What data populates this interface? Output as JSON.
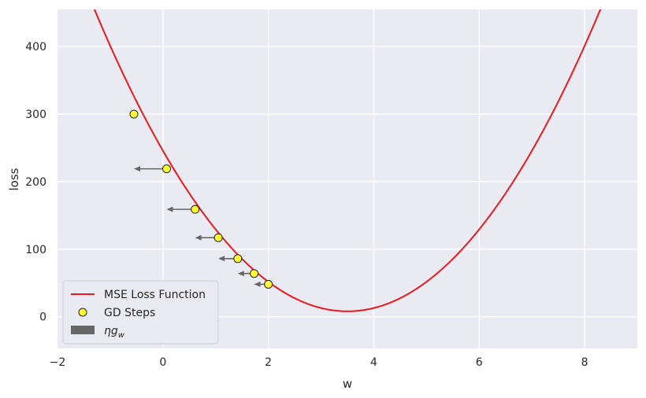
{
  "chart_data": {
    "type": "line",
    "title": "",
    "xlabel": "w",
    "ylabel": "loss",
    "xlim": [
      -2,
      9
    ],
    "ylim": [
      -47,
      455
    ],
    "xticks": [
      -2,
      0,
      2,
      4,
      6,
      8
    ],
    "yticks": [
      0,
      100,
      200,
      300,
      400
    ],
    "grid": true,
    "legend_position": "lower-left",
    "colors": {
      "curve": "#e41a1c",
      "points": "#ffff33",
      "arrows": "#666666",
      "background": "#eaeaf2",
      "grid": "#ffffff"
    },
    "curve": {
      "name": "MSE Loss Function",
      "formula": "loss = 19.41 * (w - 3.5)^2 + 8",
      "vertex": [
        3.5,
        8
      ]
    },
    "series": [
      {
        "name": "GD Steps",
        "type": "scatter",
        "points": [
          {
            "x": -0.55,
            "y": 300
          },
          {
            "x": 0.07,
            "y": 219
          },
          {
            "x": 0.61,
            "y": 159
          },
          {
            "x": 1.05,
            "y": 117
          },
          {
            "x": 1.42,
            "y": 86
          },
          {
            "x": 1.73,
            "y": 64
          },
          {
            "x": 2.0,
            "y": 48
          }
        ]
      },
      {
        "name": "ηg_w",
        "name_display": {
          "main": "ηg",
          "sub": "w"
        },
        "type": "arrows",
        "arrows": [
          {
            "x_from": 0.07,
            "x_to": -0.55,
            "y": 219
          },
          {
            "x_from": 0.61,
            "x_to": 0.07,
            "y": 159
          },
          {
            "x_from": 1.05,
            "x_to": 0.61,
            "y": 117
          },
          {
            "x_from": 1.42,
            "x_to": 1.05,
            "y": 86
          },
          {
            "x_from": 1.73,
            "x_to": 1.42,
            "y": 64
          },
          {
            "x_from": 2.0,
            "x_to": 1.73,
            "y": 48
          }
        ]
      }
    ]
  }
}
